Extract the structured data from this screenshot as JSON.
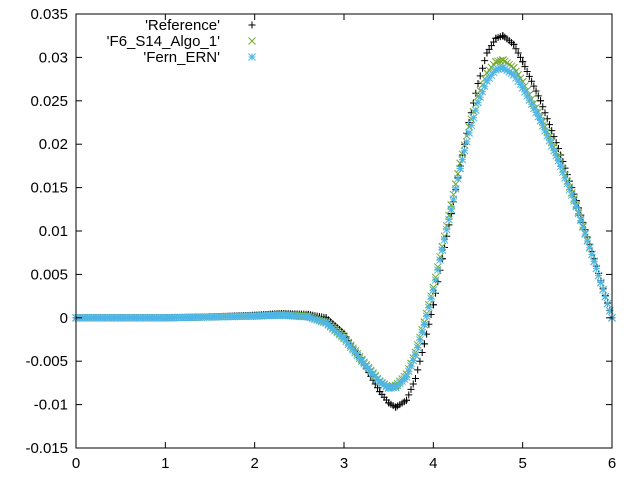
{
  "chart_data": {
    "type": "scatter",
    "xlim": [
      0,
      6
    ],
    "ylim": [
      -0.015,
      0.035
    ],
    "x_ticks": [
      "0",
      "1",
      "2",
      "3",
      "4",
      "5",
      "6"
    ],
    "y_ticks": [
      "-0.015",
      "-0.01",
      "-0.005",
      "0",
      "0.005",
      "0.01",
      "0.015",
      "0.02",
      "0.025",
      "0.03",
      "0.035"
    ],
    "grid": false,
    "legend_position": "top-left",
    "series": [
      {
        "name": "'Reference'",
        "marker": "plus",
        "color": "#000000",
        "points": [
          [
            0,
            0
          ],
          [
            0.5,
            0
          ],
          [
            1,
            0
          ],
          [
            1.5,
            0.0001
          ],
          [
            2,
            0.0003
          ],
          [
            2.3,
            0.0005
          ],
          [
            2.6,
            0.0004
          ],
          [
            2.8,
            0
          ],
          [
            3.0,
            -0.0018
          ],
          [
            3.2,
            -0.005
          ],
          [
            3.4,
            -0.0085
          ],
          [
            3.5,
            -0.0098
          ],
          [
            3.58,
            -0.0103
          ],
          [
            3.7,
            -0.0095
          ],
          [
            3.8,
            -0.007
          ],
          [
            3.9,
            -0.003
          ],
          [
            4.0,
            0.0015
          ],
          [
            4.1,
            0.0068
          ],
          [
            4.2,
            0.012
          ],
          [
            4.3,
            0.0175
          ],
          [
            4.4,
            0.0225
          ],
          [
            4.5,
            0.027
          ],
          [
            4.6,
            0.0305
          ],
          [
            4.7,
            0.0322
          ],
          [
            4.78,
            0.0325
          ],
          [
            4.9,
            0.0315
          ],
          [
            5.0,
            0.0295
          ],
          [
            5.2,
            0.025
          ],
          [
            5.4,
            0.0195
          ],
          [
            5.6,
            0.0135
          ],
          [
            5.8,
            0.0068
          ],
          [
            6.0,
            0
          ]
        ]
      },
      {
        "name": "'F6_S14_Algo_1'",
        "marker": "cross",
        "color": "#76a82e",
        "points": [
          [
            0,
            0
          ],
          [
            0.5,
            0
          ],
          [
            1,
            0
          ],
          [
            1.5,
            0.0001
          ],
          [
            2,
            0.0002
          ],
          [
            2.3,
            0.0004
          ],
          [
            2.6,
            0.0002
          ],
          [
            2.8,
            -0.0005
          ],
          [
            3.0,
            -0.0022
          ],
          [
            3.2,
            -0.0048
          ],
          [
            3.4,
            -0.0073
          ],
          [
            3.5,
            -0.008
          ],
          [
            3.58,
            -0.0078
          ],
          [
            3.7,
            -0.0065
          ],
          [
            3.8,
            -0.004
          ],
          [
            3.9,
            -0.0005
          ],
          [
            4.0,
            0.0035
          ],
          [
            4.1,
            0.0082
          ],
          [
            4.2,
            0.013
          ],
          [
            4.3,
            0.0178
          ],
          [
            4.4,
            0.022
          ],
          [
            4.5,
            0.0255
          ],
          [
            4.6,
            0.0282
          ],
          [
            4.7,
            0.0295
          ],
          [
            4.78,
            0.0297
          ],
          [
            4.9,
            0.0288
          ],
          [
            5.0,
            0.0272
          ],
          [
            5.2,
            0.0232
          ],
          [
            5.4,
            0.0185
          ],
          [
            5.6,
            0.013
          ],
          [
            5.8,
            0.0065
          ],
          [
            6.0,
            0
          ]
        ]
      },
      {
        "name": "'Fern_ERN'",
        "marker": "star",
        "color": "#4fb6e6",
        "points": [
          [
            0,
            0
          ],
          [
            0.5,
            0
          ],
          [
            1,
            0
          ],
          [
            1.5,
            0.0001
          ],
          [
            2,
            0.0002
          ],
          [
            2.3,
            0.0003
          ],
          [
            2.6,
            0.0001
          ],
          [
            2.8,
            -0.0006
          ],
          [
            3.0,
            -0.0024
          ],
          [
            3.2,
            -0.005
          ],
          [
            3.4,
            -0.0074
          ],
          [
            3.5,
            -0.0081
          ],
          [
            3.58,
            -0.008
          ],
          [
            3.7,
            -0.0068
          ],
          [
            3.8,
            -0.0043
          ],
          [
            3.9,
            -0.0008
          ],
          [
            4.0,
            0.0032
          ],
          [
            4.1,
            0.0078
          ],
          [
            4.2,
            0.0125
          ],
          [
            4.3,
            0.0172
          ],
          [
            4.4,
            0.0213
          ],
          [
            4.5,
            0.0248
          ],
          [
            4.6,
            0.0273
          ],
          [
            4.7,
            0.0286
          ],
          [
            4.78,
            0.0288
          ],
          [
            4.9,
            0.028
          ],
          [
            5.0,
            0.0265
          ],
          [
            5.2,
            0.0227
          ],
          [
            5.4,
            0.0181
          ],
          [
            5.6,
            0.0128
          ],
          [
            5.8,
            0.0065
          ],
          [
            6.0,
            0
          ]
        ]
      }
    ]
  }
}
